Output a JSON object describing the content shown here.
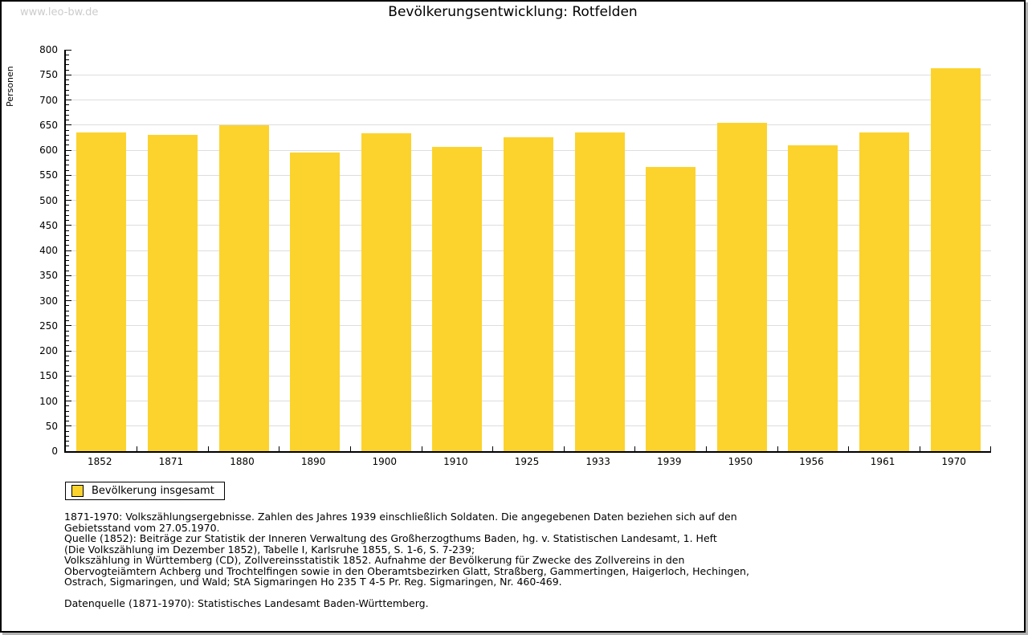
{
  "watermark": "www.leo-bw.de",
  "title": "Bevölkerungsentwicklung: Rotfelden",
  "chart_data": {
    "type": "bar",
    "title": "Bevölkerungsentwicklung: Rotfelden",
    "ylabel": "Personen",
    "xlabel": "",
    "categories": [
      "1852",
      "1871",
      "1880",
      "1890",
      "1900",
      "1910",
      "1925",
      "1933",
      "1939",
      "1950",
      "1956",
      "1961",
      "1970"
    ],
    "values": [
      636,
      630,
      649,
      596,
      633,
      607,
      626,
      636,
      567,
      655,
      609,
      636,
      764
    ],
    "ylim": [
      0,
      800
    ],
    "y_major_step": 50,
    "y_minor_step": 10,
    "grid": true,
    "legend_position": "bottom-left",
    "legend_entries": [
      "Bevölkerung insgesamt"
    ],
    "bar_color": "#fcd32d"
  },
  "legend": {
    "label": "Bevölkerung insgesamt"
  },
  "footnotes": {
    "lines": [
      "1871-1970: Volkszählungsergebnisse. Zahlen des Jahres 1939 einschließlich Soldaten. Die angegebenen Daten beziehen sich auf den",
      "Gebietsstand vom 27.05.1970.",
      "Quelle (1852): Beiträge zur Statistik der Inneren Verwaltung des Großherzogthums Baden, hg. v. Statistischen Landesamt, 1. Heft",
      "(Die Volkszählung im Dezember 1852), Tabelle I, Karlsruhe 1855, S. 1-6, S. 7-239;",
      "Volkszählung in Württemberg (CD), Zollvereinsstatistik 1852. Aufnahme der Bevölkerung für Zwecke des Zollvereins in den",
      "Obervogteiämtern Achberg und Trochtelfingen sowie in den Oberamtsbezirken Glatt, Straßberg, Gammertingen, Haigerloch, Hechingen,",
      "Ostrach, Sigmaringen, und Wald; StA Sigmaringen Ho 235 T 4-5 Pr. Reg. Sigmaringen, Nr. 460-469."
    ],
    "datasource": "Datenquelle (1871-1970): Statistisches Landesamt Baden-Württemberg."
  },
  "colors": {
    "bar": "#fcd32d",
    "grid": "#dddddd",
    "axis": "#000000",
    "watermark": "#cccccc"
  }
}
